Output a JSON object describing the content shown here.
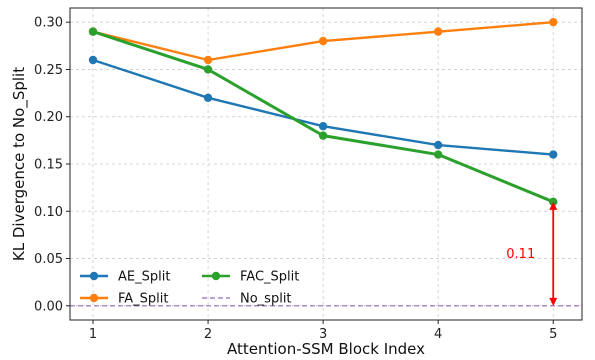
{
  "chart_data": {
    "type": "line",
    "title": "",
    "xlabel": "Attention-SSM Block Index",
    "ylabel": "KL Divergence to No_Split",
    "x": [
      1,
      2,
      3,
      4,
      5
    ],
    "xlim": [
      0.8,
      5.25
    ],
    "ylim": [
      -0.015,
      0.315
    ],
    "xticks": [
      "1",
      "2",
      "3",
      "4",
      "5"
    ],
    "yticks": [
      "0.00",
      "0.05",
      "0.10",
      "0.15",
      "0.20",
      "0.25",
      "0.30"
    ],
    "grid": true,
    "legend_placement": "lower-left",
    "series": [
      {
        "name": "AE_Split",
        "color": "#1f77b4",
        "values": [
          0.26,
          0.22,
          0.19,
          0.17,
          0.16
        ]
      },
      {
        "name": "FA_Split",
        "color": "#ff7f0e",
        "values": [
          0.29,
          0.26,
          0.28,
          0.29,
          0.3
        ]
      },
      {
        "name": "FAC_Split",
        "color": "#2ca02c",
        "values": [
          0.29,
          0.25,
          0.18,
          0.16,
          0.11
        ]
      }
    ],
    "reference_line": {
      "name": "No_split",
      "color": "#9467bd",
      "value": 0.0,
      "style": "dashed"
    },
    "annotation": {
      "text": "0.11",
      "color": "#ff0000",
      "x": 5,
      "from": 0.0,
      "to": 0.11
    }
  }
}
